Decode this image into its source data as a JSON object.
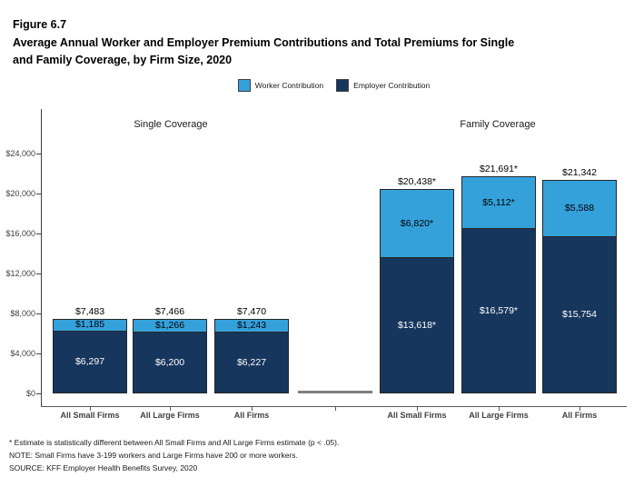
{
  "figure": {
    "label": "Figure 6.7",
    "title": "Average Annual Worker and Employer Premium Contributions and Total Premiums for Single and Family Coverage, by Firm Size, 2020",
    "title_lines": [
      "Average Annual Worker and Employer Premium Contributions and Total Premiums for Single",
      "and Family Coverage, by Firm Size, 2020"
    ]
  },
  "legend": [
    {
      "label": "Worker Contribution",
      "color": "#35A1DB"
    },
    {
      "label": "Employer Contribution",
      "color": "#17365D"
    }
  ],
  "chart_data": {
    "type": "bar",
    "stacked": true,
    "group_titles": [
      "Single Coverage",
      "Family Coverage"
    ],
    "categories": [
      "All Small Firms",
      "All Large Firms",
      "All Firms",
      "All Small Firms",
      "All Large Firms",
      "All Firms"
    ],
    "series": [
      {
        "name": "Worker Contribution",
        "color": "#35A1DB",
        "values": [
          1185,
          1266,
          1243,
          6820,
          5112,
          5588
        ],
        "labels": [
          "$1,185",
          "$1,266",
          "$1,243",
          "$6,820*",
          "$5,112*",
          "$5,588"
        ]
      },
      {
        "name": "Employer Contribution",
        "color": "#17365D",
        "values": [
          6297,
          6200,
          6227,
          13618,
          16579,
          15754
        ],
        "labels": [
          "$6,297",
          "$6,200",
          "$6,227",
          "$13,618*",
          "$16,579*",
          "$15,754"
        ]
      }
    ],
    "totals": [
      7483,
      7466,
      7470,
      20438,
      21691,
      21342
    ],
    "total_labels": [
      "$7,483",
      "$7,466",
      "$7,470",
      "$20,438*",
      "$21,691*",
      "$21,342"
    ],
    "y_ticks": [
      {
        "value": 0,
        "label": "$0"
      },
      {
        "value": 4000,
        "label": "$4,000"
      },
      {
        "value": 8000,
        "label": "$8,000"
      },
      {
        "value": 12000,
        "label": "$12,000"
      },
      {
        "value": 16000,
        "label": "$16,000"
      },
      {
        "value": 20000,
        "label": "$20,000"
      },
      {
        "value": 24000,
        "label": "$24,000"
      }
    ],
    "ylim": [
      0,
      24000
    ],
    "xlabel": "",
    "ylabel": "",
    "grid": false,
    "legend_position": "top"
  },
  "footnotes": [
    "* Estimate is statistically different between All Small Firms and All Large Firms estimate (p < .05).",
    "NOTE: Small Firms have 3-199 workers and Large Firms have 200 or more workers.",
    "SOURCE: KFF Employer Health Benefits Survey, 2020"
  ]
}
